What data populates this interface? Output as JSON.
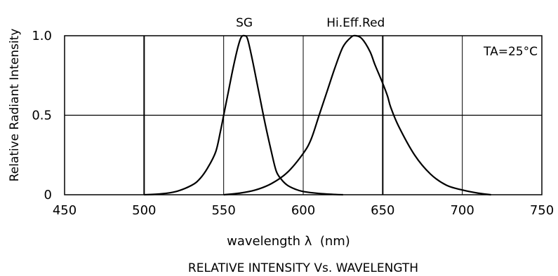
{
  "chart_data": {
    "type": "line",
    "title": "RELATIVE INTENSITY Vs. WAVELENGTH",
    "xlabel": "wavelength λ  (nm)",
    "ylabel": "Relative Radiant Intensity",
    "xlim": [
      450,
      750
    ],
    "ylim": [
      0,
      1.0
    ],
    "x_ticks": [
      "450",
      "500",
      "550",
      "600",
      "650",
      "700",
      "750"
    ],
    "y_ticks": [
      "0",
      "0.5",
      "1.0"
    ],
    "grid": true,
    "annotation": "TA=25°C",
    "series": [
      {
        "name": "SG",
        "points": [
          [
            500,
            0.0
          ],
          [
            510,
            0.005
          ],
          [
            520,
            0.02
          ],
          [
            530,
            0.06
          ],
          [
            535,
            0.1
          ],
          [
            540,
            0.17
          ],
          [
            545,
            0.27
          ],
          [
            548,
            0.4
          ],
          [
            550,
            0.5
          ],
          [
            553,
            0.65
          ],
          [
            556,
            0.8
          ],
          [
            559,
            0.93
          ],
          [
            561,
            0.99
          ],
          [
            563,
            1.0
          ],
          [
            565,
            0.98
          ],
          [
            568,
            0.85
          ],
          [
            572,
            0.65
          ],
          [
            576,
            0.45
          ],
          [
            580,
            0.27
          ],
          [
            583,
            0.15
          ],
          [
            586,
            0.1
          ],
          [
            590,
            0.06
          ],
          [
            595,
            0.035
          ],
          [
            600,
            0.02
          ],
          [
            610,
            0.008
          ],
          [
            620,
            0.002
          ],
          [
            625,
            0.0
          ]
        ]
      },
      {
        "name": "Hi.Eff.Red",
        "points": [
          [
            550,
            0.0
          ],
          [
            560,
            0.01
          ],
          [
            570,
            0.03
          ],
          [
            580,
            0.07
          ],
          [
            590,
            0.14
          ],
          [
            600,
            0.26
          ],
          [
            605,
            0.35
          ],
          [
            610,
            0.5
          ],
          [
            615,
            0.65
          ],
          [
            620,
            0.8
          ],
          [
            625,
            0.93
          ],
          [
            630,
            0.99
          ],
          [
            633,
            1.0
          ],
          [
            637,
            0.98
          ],
          [
            642,
            0.9
          ],
          [
            645,
            0.82
          ],
          [
            650,
            0.7
          ],
          [
            653,
            0.62
          ],
          [
            655,
            0.55
          ],
          [
            660,
            0.43
          ],
          [
            670,
            0.25
          ],
          [
            680,
            0.13
          ],
          [
            690,
            0.06
          ],
          [
            700,
            0.03
          ],
          [
            710,
            0.01
          ],
          [
            718,
            0.0
          ]
        ]
      }
    ]
  }
}
